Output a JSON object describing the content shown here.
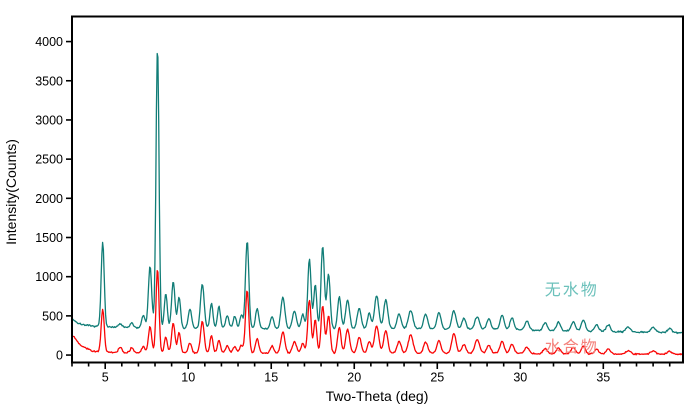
{
  "figure": {
    "background": "#ffffff",
    "frame_color": "#000000"
  },
  "chart_data": {
    "type": "line",
    "title": "",
    "xlabel": "Two-Theta (deg)",
    "ylabel": "Intensity(Counts)",
    "xlim": [
      3.0,
      39.8
    ],
    "ylim": [
      -95,
      4320
    ],
    "grid": false,
    "x_major_ticks": [
      5,
      10,
      15,
      20,
      25,
      30,
      35
    ],
    "x_minor_tick_step": 1,
    "y_major_ticks": [
      0,
      500,
      1000,
      1500,
      2000,
      2500,
      3000,
      3500,
      4000
    ],
    "legend_position": "inline-annotations",
    "series": [
      {
        "name": "无水物",
        "color": "#117d77",
        "label_color": "#6cc1bb",
        "label_pos": [
          33.1,
          830
        ],
        "noise": 10,
        "seed": 7,
        "baseline": [
          [
            3.0,
            465
          ],
          [
            3.4,
            400
          ],
          [
            4.2,
            368
          ],
          [
            5.5,
            355
          ],
          [
            8,
            345
          ],
          [
            12,
            340
          ],
          [
            16,
            333
          ],
          [
            19,
            338
          ],
          [
            23,
            338
          ],
          [
            26,
            332
          ],
          [
            29,
            328
          ],
          [
            32,
            313
          ],
          [
            35,
            300
          ],
          [
            39.8,
            285
          ]
        ],
        "peaks": [
          [
            4.85,
            1080,
            0.09
          ],
          [
            5.9,
            45,
            0.1
          ],
          [
            6.6,
            55,
            0.1
          ],
          [
            7.3,
            160,
            0.1
          ],
          [
            7.7,
            790,
            0.1
          ],
          [
            8.15,
            3590,
            0.09
          ],
          [
            8.65,
            440,
            0.09
          ],
          [
            9.1,
            590,
            0.1
          ],
          [
            9.45,
            400,
            0.09
          ],
          [
            10.1,
            250,
            0.1
          ],
          [
            10.85,
            560,
            0.11
          ],
          [
            11.4,
            320,
            0.09
          ],
          [
            11.85,
            280,
            0.09
          ],
          [
            12.35,
            160,
            0.1
          ],
          [
            12.8,
            150,
            0.1
          ],
          [
            13.2,
            170,
            0.09
          ],
          [
            13.55,
            1120,
            0.1
          ],
          [
            14.15,
            260,
            0.1
          ],
          [
            15.05,
            160,
            0.1
          ],
          [
            15.7,
            400,
            0.12
          ],
          [
            16.4,
            230,
            0.12
          ],
          [
            16.9,
            180,
            0.1
          ],
          [
            17.3,
            890,
            0.1
          ],
          [
            17.65,
            560,
            0.09
          ],
          [
            18.1,
            1050,
            0.1
          ],
          [
            18.45,
            700,
            0.1
          ],
          [
            19.1,
            405,
            0.1
          ],
          [
            19.6,
            360,
            0.12
          ],
          [
            20.3,
            260,
            0.12
          ],
          [
            20.9,
            200,
            0.1
          ],
          [
            21.35,
            420,
            0.13
          ],
          [
            21.9,
            370,
            0.12
          ],
          [
            22.7,
            190,
            0.12
          ],
          [
            23.4,
            230,
            0.14
          ],
          [
            24.3,
            190,
            0.12
          ],
          [
            25.1,
            210,
            0.12
          ],
          [
            26.0,
            230,
            0.13
          ],
          [
            26.6,
            140,
            0.12
          ],
          [
            27.4,
            160,
            0.14
          ],
          [
            28.1,
            130,
            0.12
          ],
          [
            28.9,
            180,
            0.12
          ],
          [
            29.5,
            150,
            0.12
          ],
          [
            30.4,
            115,
            0.12
          ],
          [
            31.5,
            95,
            0.12
          ],
          [
            32.3,
            105,
            0.12
          ],
          [
            33.2,
            115,
            0.12
          ],
          [
            33.8,
            145,
            0.12
          ],
          [
            34.6,
            85,
            0.12
          ],
          [
            35.3,
            85,
            0.12
          ],
          [
            36.5,
            65,
            0.14
          ],
          [
            38.0,
            65,
            0.14
          ],
          [
            39.0,
            55,
            0.12
          ]
        ]
      },
      {
        "name": "水合物",
        "color": "#f90606",
        "label_color": "#f4837d",
        "label_pos": [
          33.1,
          100
        ],
        "noise": 9,
        "seed": 13,
        "baseline": [
          [
            3.0,
            265
          ],
          [
            3.5,
            130
          ],
          [
            4.2,
            50
          ],
          [
            5.5,
            32
          ],
          [
            8,
            28
          ],
          [
            12,
            28
          ],
          [
            16,
            24
          ],
          [
            20,
            28
          ],
          [
            24,
            24
          ],
          [
            28,
            26
          ],
          [
            31,
            20
          ],
          [
            34,
            16
          ],
          [
            39.8,
            12
          ]
        ],
        "peaks": [
          [
            4.85,
            550,
            0.09
          ],
          [
            5.9,
            70,
            0.1
          ],
          [
            6.6,
            60,
            0.1
          ],
          [
            7.3,
            80,
            0.1
          ],
          [
            7.7,
            330,
            0.1
          ],
          [
            8.15,
            1070,
            0.09
          ],
          [
            8.65,
            200,
            0.09
          ],
          [
            9.1,
            380,
            0.1
          ],
          [
            9.45,
            260,
            0.09
          ],
          [
            10.1,
            130,
            0.1
          ],
          [
            10.85,
            400,
            0.11
          ],
          [
            11.4,
            220,
            0.09
          ],
          [
            11.85,
            160,
            0.09
          ],
          [
            12.35,
            90,
            0.1
          ],
          [
            12.8,
            80,
            0.1
          ],
          [
            13.2,
            100,
            0.09
          ],
          [
            13.55,
            800,
            0.1
          ],
          [
            14.15,
            180,
            0.1
          ],
          [
            15.05,
            90,
            0.1
          ],
          [
            15.7,
            270,
            0.12
          ],
          [
            16.4,
            150,
            0.12
          ],
          [
            16.9,
            120,
            0.1
          ],
          [
            17.3,
            680,
            0.1
          ],
          [
            17.65,
            430,
            0.09
          ],
          [
            18.1,
            600,
            0.1
          ],
          [
            18.45,
            480,
            0.1
          ],
          [
            19.1,
            330,
            0.1
          ],
          [
            19.6,
            300,
            0.12
          ],
          [
            20.3,
            200,
            0.12
          ],
          [
            20.9,
            150,
            0.1
          ],
          [
            21.35,
            350,
            0.13
          ],
          [
            21.9,
            290,
            0.12
          ],
          [
            22.7,
            150,
            0.12
          ],
          [
            23.4,
            235,
            0.14
          ],
          [
            24.3,
            145,
            0.12
          ],
          [
            25.1,
            165,
            0.12
          ],
          [
            26.0,
            250,
            0.13
          ],
          [
            26.6,
            110,
            0.12
          ],
          [
            27.4,
            170,
            0.14
          ],
          [
            28.1,
            100,
            0.12
          ],
          [
            28.9,
            155,
            0.12
          ],
          [
            29.5,
            115,
            0.12
          ],
          [
            30.4,
            80,
            0.12
          ],
          [
            31.5,
            60,
            0.12
          ],
          [
            32.3,
            70,
            0.12
          ],
          [
            33.2,
            80,
            0.12
          ],
          [
            33.8,
            100,
            0.12
          ],
          [
            34.6,
            60,
            0.12
          ],
          [
            35.3,
            60,
            0.12
          ],
          [
            36.5,
            40,
            0.14
          ],
          [
            38.0,
            40,
            0.14
          ],
          [
            39.0,
            40,
            0.12
          ]
        ]
      }
    ]
  }
}
